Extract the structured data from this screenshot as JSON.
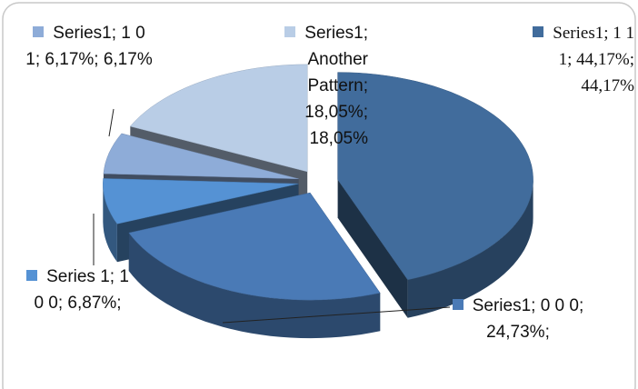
{
  "chart_data": {
    "type": "pie3d",
    "series_name": "Series1",
    "categories": [
      "1 1 1",
      "0 0 0",
      "1 0 0",
      "1 0 1",
      "Another Pattern"
    ],
    "values": [
      44.17,
      24.73,
      6.87,
      6.17,
      18.05
    ],
    "value_labels": [
      "Series1; 1 1 1; 44,17%; 44,17%",
      "Series1; 0 0 0; 24,73%;",
      "Series 1; 1 0 0; 6,87%;",
      "Series1; 1 0 1; 6,17%; 6,17%",
      "Series1; Another Pattern; 18,05%; 18,05%"
    ],
    "colors": [
      "#416c9c",
      "#4a7ab6",
      "#5592d4",
      "#8eacd8",
      "#b9cde6"
    ]
  }
}
